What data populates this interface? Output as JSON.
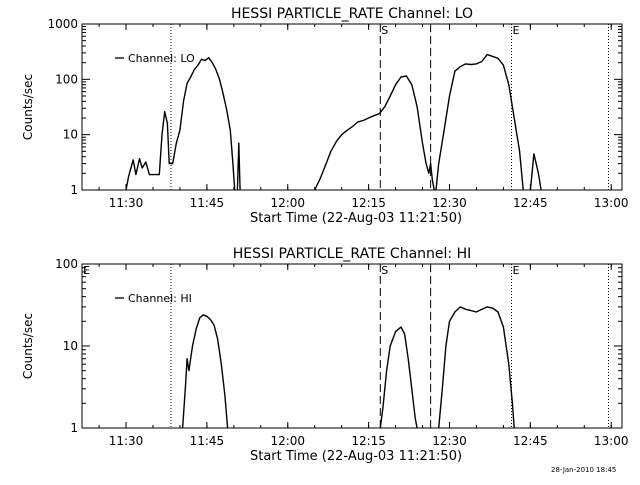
{
  "footer": {
    "timestamp": "28-Jan-2010 18:45"
  },
  "chart_data": [
    {
      "type": "line",
      "title": "HESSI PARTICLE_RATE Channel: LO",
      "xlabel": "Start Time (22-Aug-03 11:21:50)",
      "ylabel": "Counts/sec",
      "y_scale": "log",
      "ylim": [
        1,
        1000
      ],
      "xlim": [
        "11:21:50",
        "13:02:00"
      ],
      "x_ticks": [
        "11:30",
        "11:45",
        "12:00",
        "12:15",
        "12:30",
        "12:45",
        "13:00"
      ],
      "y_ticks": [
        "1",
        "10",
        "100",
        "1000"
      ],
      "legend": {
        "position": "top-left",
        "entries": [
          "Channel: LO"
        ]
      },
      "markers": [
        {
          "time": "11:38:20",
          "style": "dotted",
          "label": ""
        },
        {
          "time": "12:17:10",
          "style": "dashed",
          "label": "S"
        },
        {
          "time": "12:26:30",
          "style": "dashed",
          "label": ""
        },
        {
          "time": "12:41:30",
          "style": "dotted",
          "label": "E"
        },
        {
          "time": "12:59:30",
          "style": "dotted",
          "label": ""
        }
      ],
      "series": [
        {
          "name": "Channel: LO",
          "segments": [
            [
              [
                "11:30:00",
                1
              ],
              [
                "11:30:30",
                1.8
              ],
              [
                "11:31:20",
                3.5
              ],
              [
                "11:31:50",
                1.9
              ],
              [
                "11:32:30",
                3.7
              ],
              [
                "11:33:00",
                2.5
              ],
              [
                "11:33:40",
                3.2
              ],
              [
                "11:34:20",
                1.9
              ],
              [
                "11:35:20",
                1.9
              ],
              [
                "11:36:10",
                1.9
              ],
              [
                "11:36:40",
                10
              ],
              [
                "11:37:10",
                26
              ],
              [
                "11:37:40",
                16
              ],
              [
                "11:38:00",
                3
              ],
              [
                "11:38:40",
                3
              ],
              [
                "11:39:20",
                7
              ],
              [
                "11:40:00",
                12
              ],
              [
                "11:40:40",
                40
              ],
              [
                "11:41:20",
                85
              ],
              [
                "11:42:00",
                110
              ],
              [
                "11:42:40",
                150
              ],
              [
                "11:43:20",
                180
              ],
              [
                "11:44:00",
                230
              ],
              [
                "11:44:40",
                220
              ],
              [
                "11:45:20",
                245
              ],
              [
                "11:46:00",
                200
              ],
              [
                "11:46:40",
                150
              ],
              [
                "11:47:20",
                100
              ],
              [
                "11:48:00",
                55
              ],
              [
                "11:48:40",
                28
              ],
              [
                "11:49:20",
                12
              ],
              [
                "11:49:50",
                3
              ],
              [
                "11:50:10",
                1
              ]
            ],
            [
              [
                "11:50:40",
                1
              ],
              [
                "11:50:55",
                7
              ],
              [
                "11:51:10",
                1
              ]
            ],
            [
              [
                "12:05:00",
                1
              ],
              [
                "12:06:00",
                1.6
              ],
              [
                "12:07:00",
                2.8
              ],
              [
                "12:08:00",
                5
              ],
              [
                "12:09:00",
                7.5
              ],
              [
                "12:10:00",
                10
              ],
              [
                "12:11:00",
                12
              ],
              [
                "12:12:00",
                14
              ],
              [
                "12:13:00",
                17
              ],
              [
                "12:14:00",
                18
              ],
              [
                "12:15:00",
                20
              ],
              [
                "12:16:00",
                22
              ],
              [
                "12:17:00",
                24
              ],
              [
                "12:18:00",
                32
              ],
              [
                "12:19:00",
                50
              ],
              [
                "12:20:00",
                80
              ],
              [
                "12:21:00",
                110
              ],
              [
                "12:22:00",
                115
              ],
              [
                "12:23:00",
                80
              ],
              [
                "12:24:00",
                32
              ],
              [
                "12:25:00",
                7
              ],
              [
                "12:25:40",
                3
              ],
              [
                "12:26:10",
                2
              ],
              [
                "12:26:30",
                3
              ],
              [
                "12:26:50",
                1.5
              ],
              [
                "12:27:10",
                1
              ]
            ],
            [
              [
                "12:27:30",
                1
              ],
              [
                "12:28:00",
                3
              ],
              [
                "12:29:00",
                12
              ],
              [
                "12:30:00",
                50
              ],
              [
                "12:31:00",
                140
              ],
              [
                "12:32:00",
                170
              ],
              [
                "12:33:00",
                190
              ],
              [
                "12:34:00",
                185
              ],
              [
                "12:35:00",
                190
              ],
              [
                "12:36:00",
                210
              ],
              [
                "12:37:00",
                280
              ],
              [
                "12:38:00",
                260
              ],
              [
                "12:39:00",
                240
              ],
              [
                "12:40:00",
                180
              ],
              [
                "12:41:00",
                80
              ],
              [
                "12:42:00",
                20
              ],
              [
                "12:43:00",
                5
              ],
              [
                "12:43:40",
                1
              ]
            ],
            [
              [
                "12:45:00",
                1
              ],
              [
                "12:45:40",
                4.5
              ],
              [
                "12:46:30",
                2
              ],
              [
                "12:47:00",
                1
              ]
            ]
          ]
        }
      ]
    },
    {
      "type": "line",
      "title": "HESSI PARTICLE_RATE Channel: HI",
      "xlabel": "Start Time (22-Aug-03 11:21:50)",
      "ylabel": "Counts/sec",
      "y_scale": "log",
      "ylim": [
        1,
        100
      ],
      "xlim": [
        "11:21:50",
        "13:02:00"
      ],
      "x_ticks": [
        "11:30",
        "11:45",
        "12:00",
        "12:15",
        "12:30",
        "12:45",
        "13:00"
      ],
      "y_ticks": [
        "1",
        "10",
        "100"
      ],
      "legend": {
        "position": "top-left",
        "entries": [
          "Channel: HI"
        ]
      },
      "markers": [
        {
          "time": "11:21:50",
          "style": "none",
          "label": "E"
        },
        {
          "time": "11:38:20",
          "style": "dotted",
          "label": ""
        },
        {
          "time": "12:17:10",
          "style": "dashed",
          "label": "S"
        },
        {
          "time": "12:26:30",
          "style": "dashed",
          "label": ""
        },
        {
          "time": "12:41:30",
          "style": "dotted",
          "label": "E"
        },
        {
          "time": "12:59:30",
          "style": "dotted",
          "label": ""
        }
      ],
      "series": [
        {
          "name": "Channel: HI",
          "segments": [
            [
              [
                "11:40:30",
                1
              ],
              [
                "11:41:00",
                3
              ],
              [
                "11:41:20",
                7
              ],
              [
                "11:41:40",
                5
              ],
              [
                "11:42:20",
                10
              ],
              [
                "11:43:00",
                16
              ],
              [
                "11:43:40",
                22
              ],
              [
                "11:44:20",
                24
              ],
              [
                "11:45:00",
                23
              ],
              [
                "11:45:40",
                21
              ],
              [
                "11:46:20",
                18
              ],
              [
                "11:47:00",
                12
              ],
              [
                "11:47:40",
                6
              ],
              [
                "11:48:20",
                2.5
              ],
              [
                "11:48:50",
                1
              ]
            ],
            [
              [
                "12:17:10",
                1
              ],
              [
                "12:17:40",
                1.8
              ],
              [
                "12:18:20",
                5
              ],
              [
                "12:19:00",
                10
              ],
              [
                "12:20:00",
                15
              ],
              [
                "12:21:00",
                17
              ],
              [
                "12:21:40",
                14
              ],
              [
                "12:22:20",
                7
              ],
              [
                "12:23:00",
                3
              ],
              [
                "12:23:40",
                1.3
              ],
              [
                "12:24:00",
                1
              ]
            ],
            [
              [
                "12:28:00",
                1
              ],
              [
                "12:28:40",
                3
              ],
              [
                "12:29:20",
                10
              ],
              [
                "12:30:00",
                20
              ],
              [
                "12:31:00",
                26
              ],
              [
                "12:32:00",
                30
              ],
              [
                "12:33:00",
                28
              ],
              [
                "12:34:00",
                27
              ],
              [
                "12:35:00",
                26
              ],
              [
                "12:36:00",
                28
              ],
              [
                "12:37:00",
                30
              ],
              [
                "12:38:00",
                29
              ],
              [
                "12:39:00",
                26
              ],
              [
                "12:40:00",
                17
              ],
              [
                "12:41:00",
                6
              ],
              [
                "12:41:40",
                2
              ],
              [
                "12:42:00",
                1
              ]
            ]
          ]
        }
      ]
    }
  ]
}
